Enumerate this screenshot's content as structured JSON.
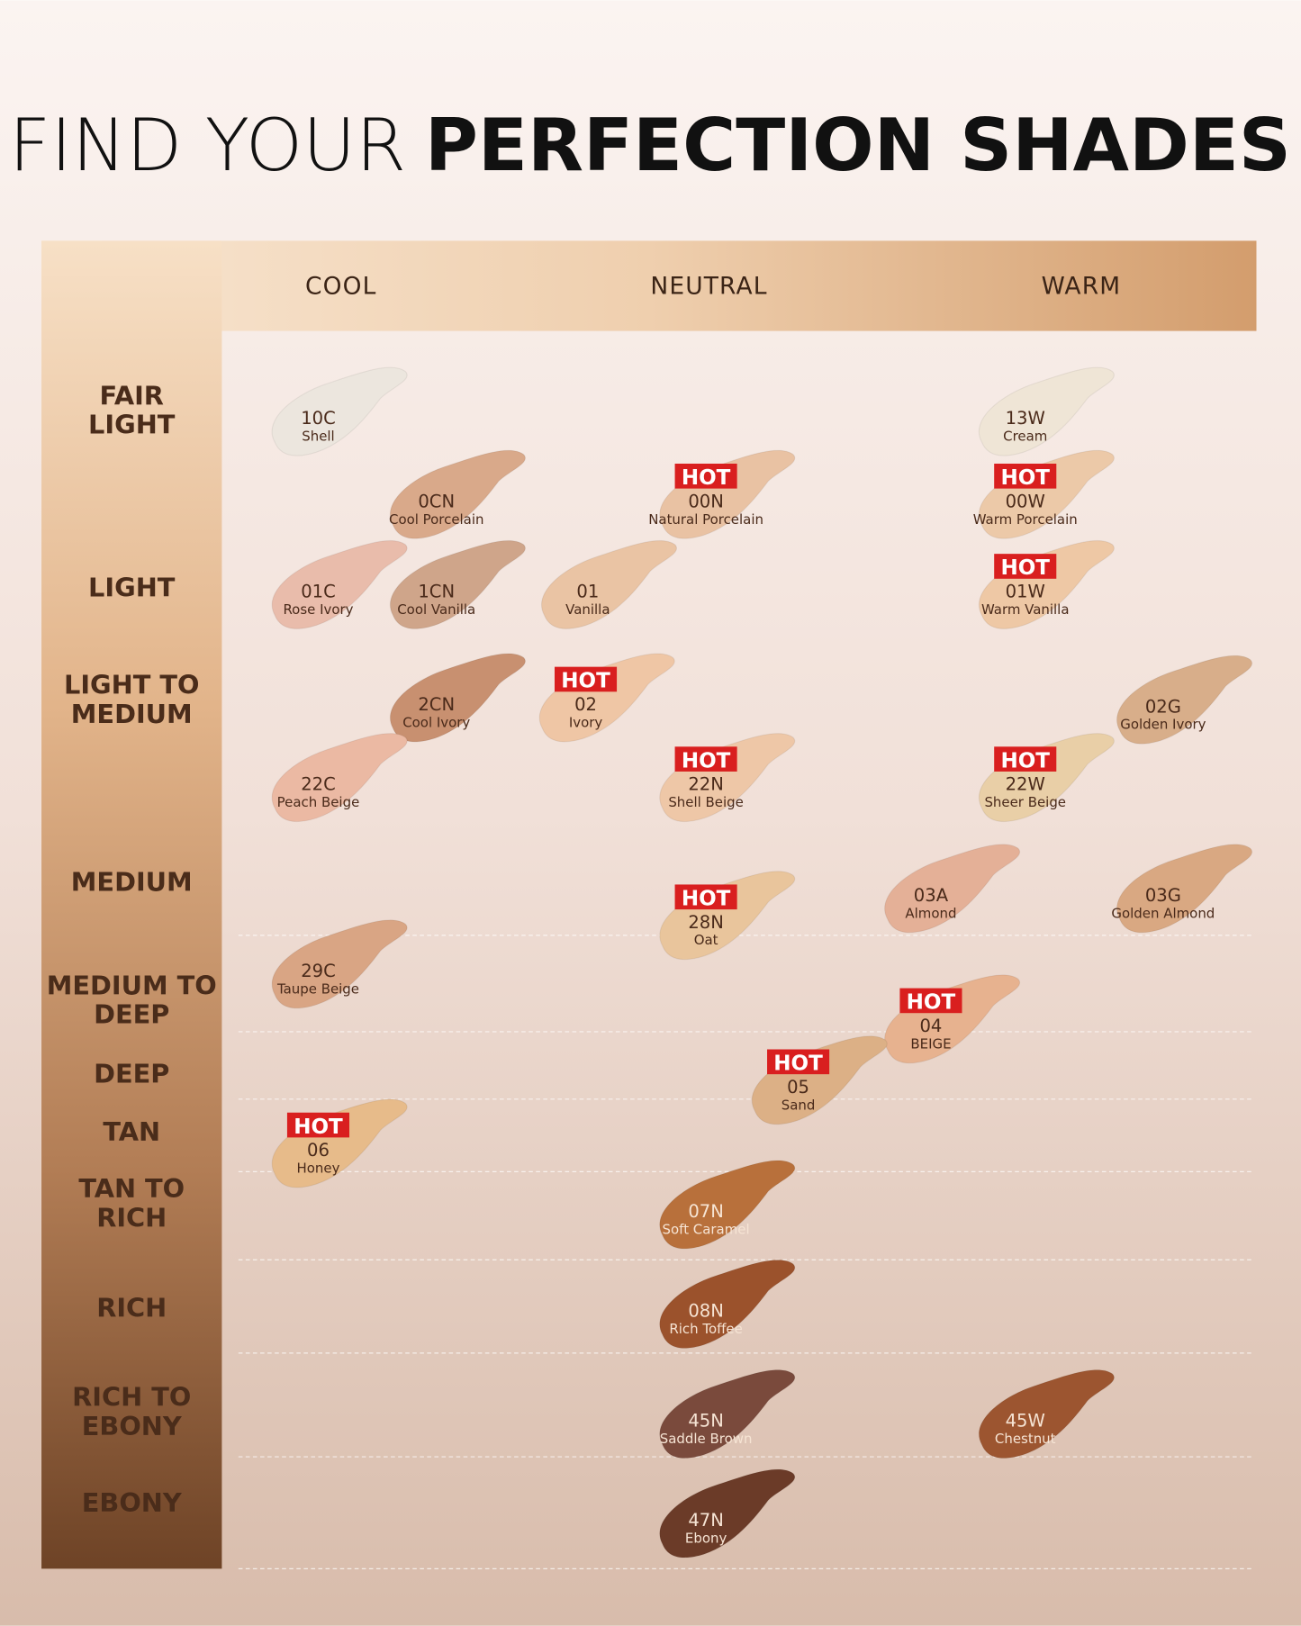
{
  "title": {
    "light": "FIND YOUR",
    "bold": "PERFECTION SHADES"
  },
  "columns": [
    "COOL",
    "NEUTRAL",
    "WARM"
  ],
  "rows": [
    {
      "lines": [
        "FAIR",
        "LIGHT"
      ]
    },
    {
      "lines": [
        "LIGHT"
      ]
    },
    {
      "lines": [
        "LIGHT TO",
        "MEDIUM"
      ]
    },
    {
      "lines": [
        "MEDIUM"
      ]
    },
    {
      "lines": [
        "MEDIUM TO",
        "DEEP"
      ]
    },
    {
      "lines": [
        "DEEP"
      ]
    },
    {
      "lines": [
        "TAN"
      ]
    },
    {
      "lines": [
        "TAN TO",
        "RICH"
      ]
    },
    {
      "lines": [
        "RICH"
      ]
    },
    {
      "lines": [
        "RICH TO",
        "EBONY"
      ]
    },
    {
      "lines": [
        "EBONY"
      ]
    }
  ],
  "swatches": [
    {
      "code": "10C",
      "name": "Shell",
      "color": "#ece6de"
    },
    {
      "code": "0CN",
      "name": "Cool Porcelain",
      "color": "#d9a98a"
    },
    {
      "code": "00N",
      "name": "Natural Porcelain",
      "color": "#e9c2a3",
      "badge": "HOT"
    },
    {
      "code": "13W",
      "name": "Cream",
      "color": "#efe5d6"
    },
    {
      "code": "00W",
      "name": "Warm Porcelain",
      "color": "#ecc9a8",
      "badge": "HOT"
    },
    {
      "code": "01C",
      "name": "Rose Ivory",
      "color": "#e9bcab"
    },
    {
      "code": "1CN",
      "name": "Cool Vanilla",
      "color": "#cfa58a"
    },
    {
      "code": "01",
      "name": "Vanilla",
      "color": "#eac4a4"
    },
    {
      "code": "01W",
      "name": "Warm Vanilla",
      "color": "#eec8a5",
      "badge": "HOT"
    },
    {
      "code": "2CN",
      "name": "Cool Ivory",
      "color": "#c89070"
    },
    {
      "code": "02",
      "name": "Ivory",
      "color": "#efc6a5",
      "badge": "HOT"
    },
    {
      "code": "02G",
      "name": "Golden Ivory",
      "color": "#d8ae8a"
    },
    {
      "code": "22C",
      "name": "Peach Beige",
      "color": "#ebb9a3"
    },
    {
      "code": "22N",
      "name": "Shell Beige",
      "color": "#eec7a7",
      "badge": "HOT"
    },
    {
      "code": "22W",
      "name": "Sheer Beige",
      "color": "#e9cfa7",
      "badge": "HOT"
    },
    {
      "code": "28N",
      "name": "Oat",
      "color": "#e9c59c",
      "badge": "HOT"
    },
    {
      "code": "03A",
      "name": "Almond",
      "color": "#e4b097"
    },
    {
      "code": "03G",
      "name": "Golden Almond",
      "color": "#d9a882"
    },
    {
      "code": "29C",
      "name": "Taupe Beige",
      "color": "#d9a584"
    },
    {
      "code": "04",
      "name": "BEIGE",
      "color": "#e7b28f",
      "badge": "HOT"
    },
    {
      "code": "05",
      "name": "Sand",
      "color": "#dcb086",
      "badge": "HOT"
    },
    {
      "code": "06",
      "name": "Honey",
      "color": "#e7bb8a",
      "badge": "HOT"
    },
    {
      "code": "07N",
      "name": "Soft Caramel",
      "color": "#b8703b"
    },
    {
      "code": "08N",
      "name": "Rich Toffee",
      "color": "#9b522c"
    },
    {
      "code": "45N",
      "name": "Saddle Brown",
      "color": "#7a4a3c"
    },
    {
      "code": "45W",
      "name": "Chestnut",
      "color": "#9c5530"
    },
    {
      "code": "47N",
      "name": "Ebony",
      "color": "#6b3b28"
    }
  ]
}
